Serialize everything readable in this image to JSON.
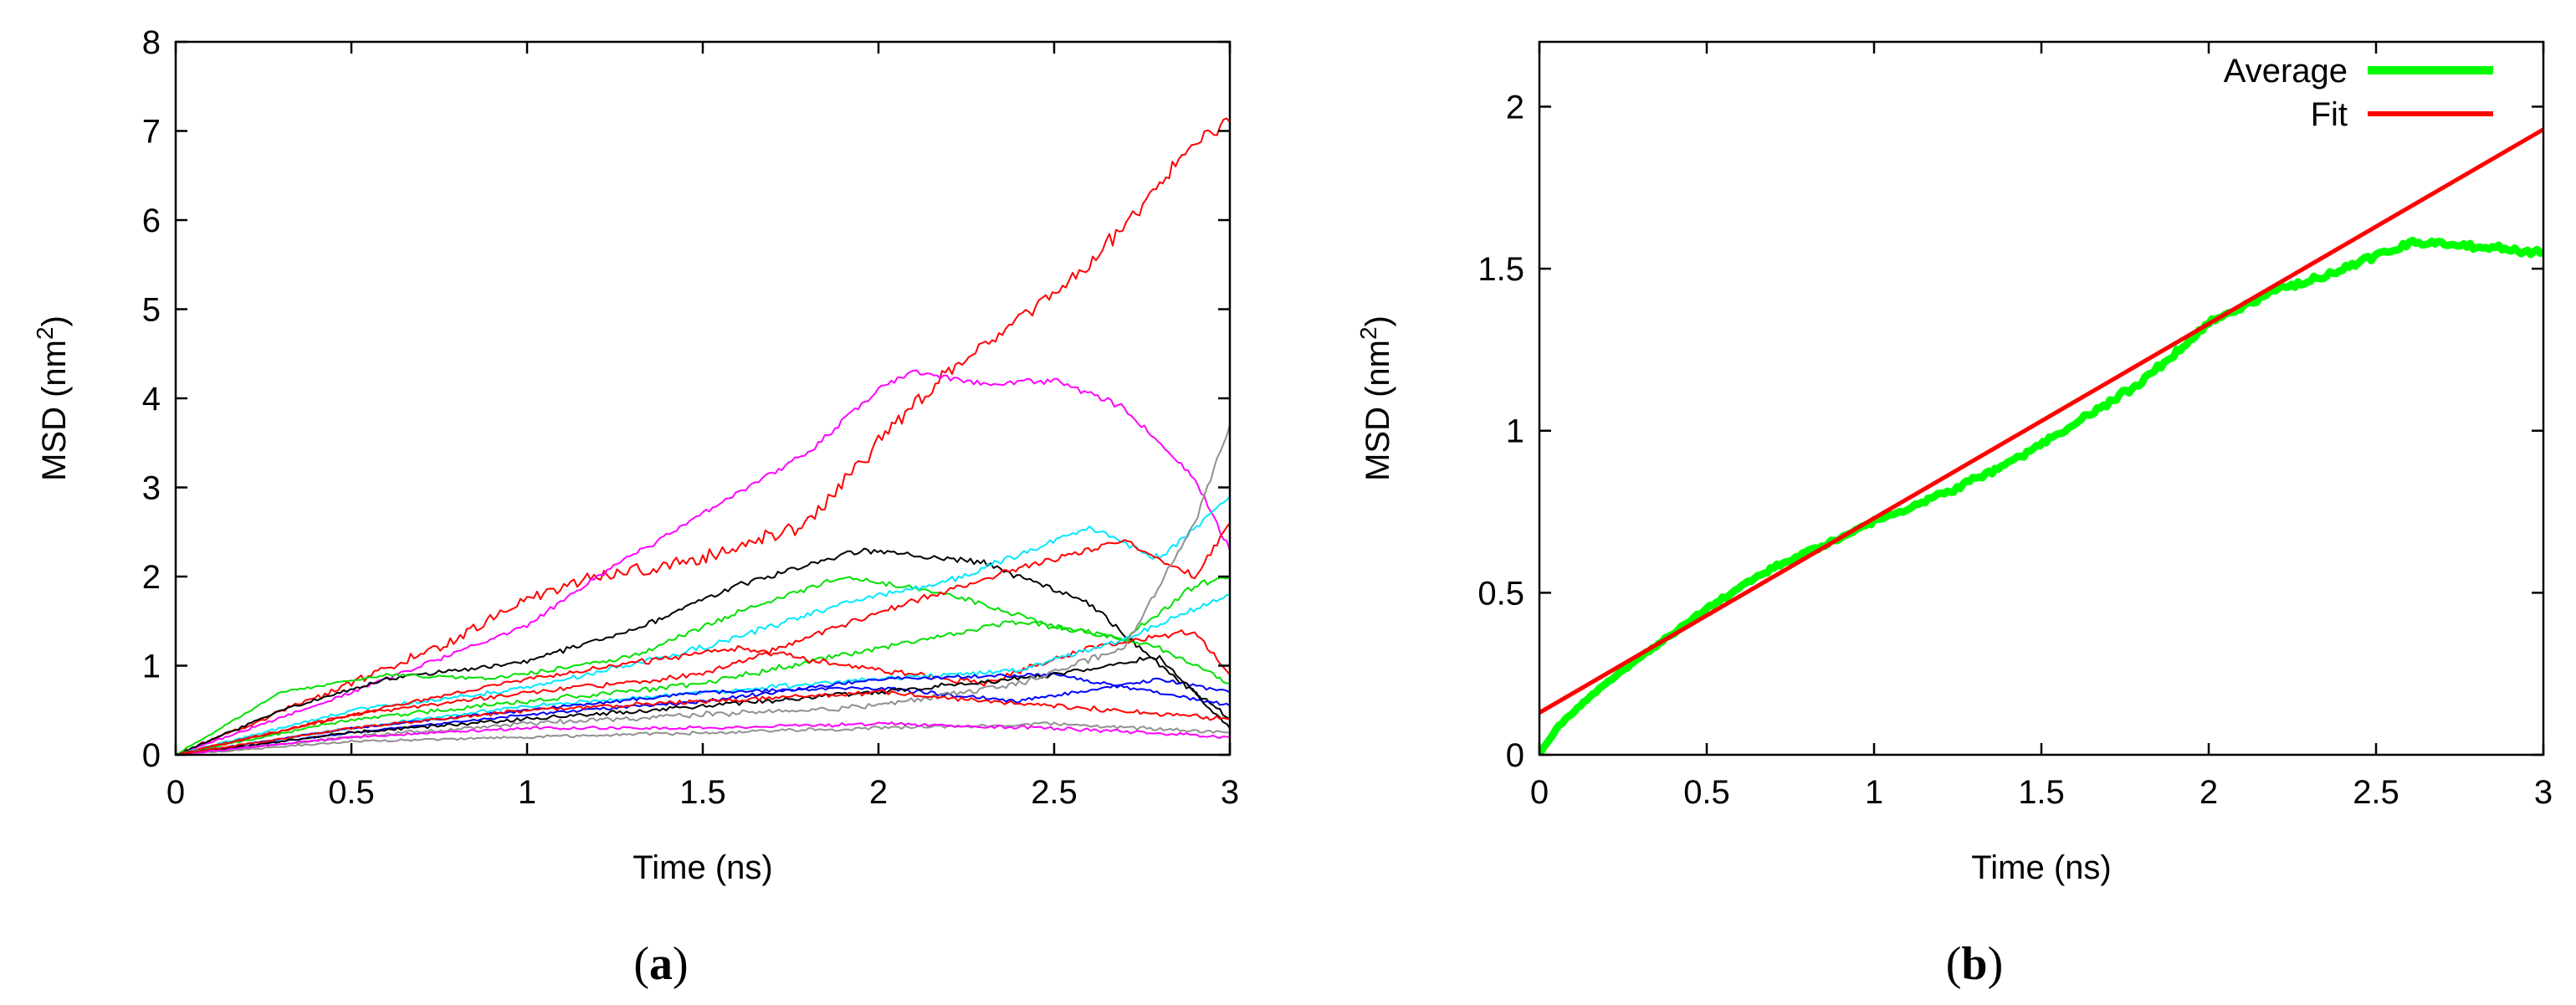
{
  "colors": {
    "red": "#ff0000",
    "green": "#00e000",
    "blue": "#0000ff",
    "magenta": "#ff00ff",
    "cyan": "#00e8ff",
    "black": "#000000",
    "gray": "#909090",
    "fit": "#ff0000",
    "average": "#00ff00"
  },
  "chart_data": [
    {
      "id": "a",
      "type": "line",
      "caption_open": "(",
      "caption_letter": "a",
      "caption_close": ")",
      "title": "",
      "xlabel": "Time (ns)",
      "ylabel": "MSD (nm",
      "ylabel_sup": "2",
      "ylabel_close": ")",
      "xlim": [
        0,
        3
      ],
      "ylim": [
        0,
        8
      ],
      "xticks": [
        0,
        0.5,
        1,
        1.5,
        2,
        2.5,
        3
      ],
      "xtick_labels": [
        "0",
        "0.5",
        "1",
        "1.5",
        "2",
        "2.5",
        "3"
      ],
      "yticks": [
        0,
        1,
        2,
        3,
        4,
        5,
        6,
        7,
        8
      ],
      "ytick_labels": [
        "0",
        "1",
        "2",
        "3",
        "4",
        "5",
        "6",
        "7",
        "8"
      ],
      "grid": false,
      "series": [
        {
          "name": "red-1",
          "color": "red",
          "noise": 0.12,
          "x": [
            0,
            0.5,
            0.8,
            1.0,
            1.2,
            1.5,
            1.8,
            2.0,
            2.2,
            2.4,
            2.6,
            2.8,
            2.9,
            3.0
          ],
          "y": [
            0,
            0.8,
            1.3,
            1.75,
            2.0,
            2.2,
            2.6,
            3.5,
            4.3,
            4.9,
            5.5,
            6.4,
            6.9,
            7.1
          ]
        },
        {
          "name": "magenta-1",
          "color": "magenta",
          "noise": 0.05,
          "x": [
            0,
            0.5,
            1.0,
            1.2,
            1.5,
            1.8,
            2.0,
            2.1,
            2.3,
            2.5,
            2.7,
            2.9,
            3.0
          ],
          "y": [
            0,
            0.7,
            1.45,
            2.0,
            2.7,
            3.4,
            4.1,
            4.3,
            4.15,
            4.2,
            3.9,
            3.1,
            2.3
          ]
        },
        {
          "name": "black-1",
          "color": "black",
          "noise": 0.05,
          "x": [
            0,
            0.3,
            0.6,
            1.0,
            1.3,
            1.6,
            1.95,
            2.3,
            2.6,
            2.8,
            3.0
          ],
          "y": [
            0,
            0.5,
            0.85,
            1.05,
            1.4,
            1.9,
            2.3,
            2.15,
            1.7,
            1.0,
            0.4
          ]
        },
        {
          "name": "green-1",
          "color": "green",
          "noise": 0.04,
          "x": [
            0,
            0.3,
            0.6,
            0.9,
            1.3,
            1.6,
            1.9,
            2.2,
            2.5,
            2.8,
            3.0
          ],
          "y": [
            0,
            0.7,
            0.9,
            0.85,
            1.1,
            1.6,
            2.0,
            1.8,
            1.45,
            1.2,
            0.8
          ]
        },
        {
          "name": "cyan-1",
          "color": "cyan",
          "noise": 0.05,
          "x": [
            0,
            0.5,
            1.0,
            1.5,
            1.9,
            2.2,
            2.6,
            2.8,
            3.0
          ],
          "y": [
            0,
            0.5,
            0.75,
            1.2,
            1.7,
            1.95,
            2.55,
            2.2,
            2.9
          ]
        },
        {
          "name": "red-2",
          "color": "red",
          "noise": 0.05,
          "x": [
            0,
            0.5,
            1.0,
            1.5,
            2.0,
            2.4,
            2.7,
            2.9,
            3.0
          ],
          "y": [
            0,
            0.45,
            0.7,
            0.9,
            1.6,
            2.1,
            2.4,
            2.0,
            2.6
          ]
        },
        {
          "name": "green-2",
          "color": "green",
          "noise": 0.05,
          "x": [
            0,
            0.5,
            1.0,
            1.5,
            2.0,
            2.4,
            2.7,
            2.9,
            3.0
          ],
          "y": [
            0,
            0.4,
            0.6,
            0.8,
            1.2,
            1.5,
            1.3,
            1.9,
            2.0
          ]
        },
        {
          "name": "red-3",
          "color": "red",
          "noise": 0.05,
          "x": [
            0,
            0.5,
            1.0,
            1.6,
            2.0,
            2.3,
            2.6,
            2.9,
            3.0
          ],
          "y": [
            0,
            0.45,
            0.85,
            1.2,
            0.95,
            0.8,
            1.2,
            1.4,
            0.9
          ]
        },
        {
          "name": "cyan-2",
          "color": "cyan",
          "noise": 0.04,
          "x": [
            0,
            0.5,
            1.0,
            1.5,
            2.0,
            2.4,
            2.7,
            3.0
          ],
          "y": [
            0,
            0.3,
            0.55,
            0.7,
            0.85,
            0.95,
            1.3,
            1.8
          ]
        },
        {
          "name": "blue-1",
          "color": "blue",
          "noise": 0.03,
          "x": [
            0,
            0.5,
            1.0,
            1.5,
            2.0,
            2.4,
            2.8,
            3.0
          ],
          "y": [
            0,
            0.3,
            0.5,
            0.7,
            0.75,
            0.6,
            0.85,
            0.7
          ]
        },
        {
          "name": "blue-2",
          "color": "blue",
          "noise": 0.03,
          "x": [
            0,
            0.5,
            1.0,
            1.5,
            2.0,
            2.5,
            3.0
          ],
          "y": [
            0,
            0.25,
            0.45,
            0.6,
            0.85,
            0.9,
            0.55
          ]
        },
        {
          "name": "black-2",
          "color": "black",
          "noise": 0.04,
          "x": [
            0,
            0.5,
            1.0,
            1.5,
            2.0,
            2.5,
            2.8,
            3.0
          ],
          "y": [
            0,
            0.25,
            0.4,
            0.55,
            0.7,
            0.9,
            1.1,
            0.3
          ]
        },
        {
          "name": "gray-1",
          "color": "gray",
          "noise": 0.05,
          "x": [
            0,
            0.5,
            1.0,
            1.5,
            2.0,
            2.4,
            2.7,
            2.9,
            3.0
          ],
          "y": [
            0,
            0.2,
            0.35,
            0.45,
            0.55,
            0.8,
            1.2,
            2.6,
            3.7
          ]
        },
        {
          "name": "gray-2",
          "color": "gray",
          "noise": 0.03,
          "x": [
            0,
            0.5,
            1.0,
            1.5,
            2.0,
            2.5,
            3.0
          ],
          "y": [
            0,
            0.15,
            0.2,
            0.25,
            0.3,
            0.35,
            0.25
          ]
        },
        {
          "name": "magenta-2",
          "color": "magenta",
          "noise": 0.03,
          "x": [
            0,
            0.5,
            1.0,
            1.5,
            2.0,
            2.5,
            3.0
          ],
          "y": [
            0,
            0.2,
            0.3,
            0.3,
            0.35,
            0.3,
            0.2
          ]
        },
        {
          "name": "red-4",
          "color": "red",
          "noise": 0.04,
          "x": [
            0,
            0.5,
            1.0,
            1.5,
            2.0,
            2.5,
            3.0
          ],
          "y": [
            0,
            0.3,
            0.5,
            0.6,
            0.7,
            0.55,
            0.4
          ]
        }
      ]
    },
    {
      "id": "b",
      "type": "line",
      "caption_open": "(",
      "caption_letter": "b",
      "caption_close": ")",
      "title": "",
      "xlabel": "Time (ns)",
      "ylabel": "MSD (nm",
      "ylabel_sup": "2",
      "ylabel_close": ")",
      "xlim": [
        0,
        3
      ],
      "ylim": [
        0,
        2.2
      ],
      "xticks": [
        0,
        0.5,
        1,
        1.5,
        2,
        2.5,
        3
      ],
      "xtick_labels": [
        "0",
        "0.5",
        "1",
        "1.5",
        "2",
        "2.5",
        "3"
      ],
      "yticks": [
        0,
        0.5,
        1,
        1.5,
        2
      ],
      "ytick_labels": [
        "0",
        "0.5",
        "1",
        "1.5",
        "2"
      ],
      "grid": false,
      "legend_position": "top-right",
      "series": [
        {
          "name": "Average",
          "color": "average",
          "noise": 0.015,
          "x": [
            0,
            0.05,
            0.15,
            0.3,
            0.5,
            0.7,
            0.9,
            1.0,
            1.2,
            1.4,
            1.6,
            1.8,
            2.0,
            2.2,
            2.4,
            2.6,
            2.8,
            3.0
          ],
          "y": [
            0,
            0.08,
            0.18,
            0.3,
            0.45,
            0.58,
            0.67,
            0.72,
            0.8,
            0.9,
            1.02,
            1.15,
            1.33,
            1.43,
            1.5,
            1.58,
            1.57,
            1.55
          ]
        },
        {
          "name": "Fit",
          "color": "fit",
          "noise": 0,
          "x": [
            0,
            3
          ],
          "y": [
            0.13,
            1.93
          ]
        }
      ]
    }
  ]
}
